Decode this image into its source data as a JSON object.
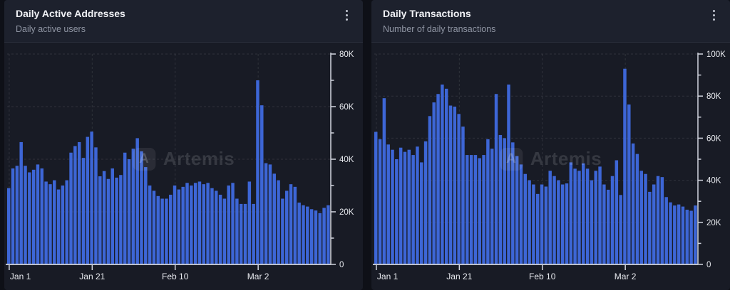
{
  "page": {
    "background": "#0e1017"
  },
  "panels": [
    {
      "header": {
        "title": "Daily Active Addresses",
        "subtitle": "Daily active users",
        "menu_icon": "kebab-menu-icon"
      },
      "watermark": {
        "text": "Artemis",
        "logo_icon": "artemis-logo-icon",
        "logo_glyph": "A"
      },
      "chart_data": {
        "type": "bar",
        "title": "Daily Active Addresses",
        "series_name": "Daily active addresses",
        "bar_color": "#3D66D6",
        "axis_color": "#d3d6e0",
        "label_color": "#e8eaef",
        "grid": "dashed",
        "legend": "none",
        "y_axis_position": "right",
        "x_tick_labels": [
          "Jan 1",
          "Jan 21",
          "Feb 10",
          "Mar 2"
        ],
        "x_tick_indices": [
          0,
          20,
          40,
          60
        ],
        "x_start_label": "Jan 1",
        "num_bars": 78,
        "unit": "K",
        "y_max_k": 80,
        "y_major_step_k": 20,
        "y_minor_step_k": 10,
        "y_tick_labels": [
          "0",
          "20K",
          "40K",
          "60K",
          "80K"
        ],
        "ylim": [
          0,
          80000
        ],
        "values_k": [
          29,
          36.5,
          37.5,
          46.5,
          37.5,
          35,
          36,
          38,
          36.5,
          31.5,
          30.5,
          32,
          28.5,
          30,
          32,
          42.5,
          45,
          46.5,
          40.5,
          48.5,
          50.5,
          44.5,
          33.5,
          35.5,
          32.5,
          36.5,
          33,
          34,
          42.5,
          40,
          44,
          48,
          43,
          37,
          30,
          28,
          26,
          25,
          25,
          26.5,
          30,
          28.5,
          29.5,
          31,
          30,
          31,
          31.5,
          30.5,
          31,
          29,
          28,
          26.5,
          25,
          30,
          31,
          25,
          23,
          23,
          31.5,
          23,
          70,
          60.5,
          38.5,
          38,
          34.5,
          32,
          25,
          28,
          30.5,
          29.5,
          23.5,
          22.5,
          22,
          21,
          20.5,
          19.5,
          21.5,
          22.5
        ]
      }
    },
    {
      "header": {
        "title": "Daily Transactions",
        "subtitle": "Number of daily transactions",
        "menu_icon": "kebab-menu-icon"
      },
      "watermark": {
        "text": "Artemis",
        "logo_icon": "artemis-logo-icon",
        "logo_glyph": "A"
      },
      "chart_data": {
        "type": "bar",
        "title": "Daily Transactions",
        "series_name": "Daily transactions",
        "bar_color": "#3D66D6",
        "axis_color": "#d3d6e0",
        "label_color": "#e8eaef",
        "grid": "dashed",
        "legend": "none",
        "y_axis_position": "right",
        "x_tick_labels": [
          "Jan 1",
          "Jan 21",
          "Feb 10",
          "Mar 2"
        ],
        "x_tick_indices": [
          0,
          20,
          40,
          60
        ],
        "x_start_label": "Jan 1",
        "num_bars": 78,
        "unit": "K",
        "y_max_k": 100,
        "y_major_step_k": 20,
        "y_minor_step_k": 10,
        "y_tick_labels": [
          "0",
          "20K",
          "40K",
          "60K",
          "80K",
          "100K"
        ],
        "ylim": [
          0,
          100000
        ],
        "values_k": [
          63,
          59.5,
          79,
          57,
          54.5,
          50,
          55.5,
          53.5,
          54.5,
          52,
          56,
          48.5,
          58.5,
          70.5,
          77,
          81,
          85.5,
          83.5,
          75.5,
          75,
          71.5,
          65.5,
          52,
          52,
          52,
          50.5,
          52,
          59.5,
          55,
          81,
          61.5,
          60,
          85.5,
          58,
          51.5,
          47.5,
          43,
          40,
          38,
          33.5,
          38,
          37,
          44.5,
          42,
          40,
          38,
          38.5,
          48.5,
          45.5,
          44.5,
          48,
          45.5,
          40,
          44.5,
          46.5,
          38,
          35.5,
          42,
          49.5,
          33,
          93,
          76,
          57.5,
          52.5,
          44.5,
          43,
          34.5,
          38,
          42,
          41.5,
          32,
          29.5,
          28,
          28.5,
          27.5,
          26,
          25.5,
          28
        ]
      }
    }
  ]
}
